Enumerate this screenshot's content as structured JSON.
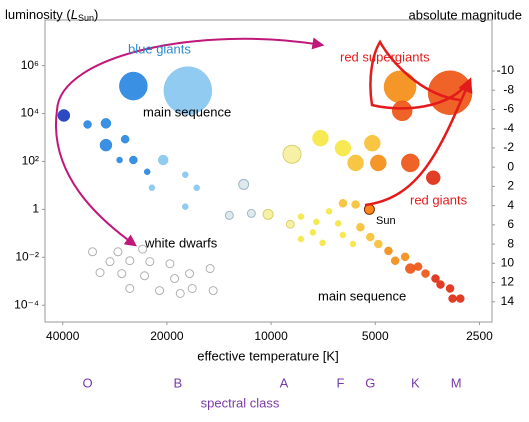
{
  "chart_data": {
    "type": "bubble",
    "ylabel": [
      "luminosity  (",
      "L",
      "Sun",
      ")"
    ],
    "y2label": "absolute magnitude",
    "xlabel": "effective temperature [K]",
    "xlog": true,
    "ylog": true,
    "xlim": [
      45000,
      2300
    ],
    "xticks": [
      40000,
      20000,
      10000,
      5000,
      2500
    ],
    "ylim": [
      2e-05,
      80000000
    ],
    "yticks": [
      {
        "value": 1000000,
        "label": "10⁶"
      },
      {
        "value": 10000,
        "label": "10⁴"
      },
      {
        "value": 100,
        "label": "10²"
      },
      1,
      {
        "value": 0.01,
        "label": "10⁻²"
      },
      {
        "value": 0.0001,
        "label": "10⁻⁴"
      }
    ],
    "y2lim": [
      16.1,
      -15.3
    ],
    "y2ticks": [
      -10,
      -8,
      -6,
      -4,
      -2,
      0,
      2,
      4,
      6,
      8,
      10,
      12,
      14
    ],
    "annotations": {
      "blue_giants": "blue giants",
      "red_supergiants": "red supergiants",
      "main_sequence_upper": "main sequence",
      "red_giants": "red giants",
      "white_dwarfs": "white dwarfs",
      "main_sequence_lower": "main sequence",
      "sun": "Sun"
    },
    "spectral_classes": {
      "labels": [
        "O",
        "B",
        "A",
        "F",
        "G",
        "K",
        "M"
      ],
      "x": [
        33900,
        18600,
        9180,
        6300,
        5170,
        3830,
        2920
      ]
    },
    "spectral_label": "spectral class",
    "series": [
      {
        "color": "#1f3fbf",
        "x": [
          39700
        ],
        "values": [
          8300
        ],
        "sizes": [
          6
        ]
      },
      {
        "color": "#2f8ae0",
        "x": [
          33900,
          30000,
          26400,
          30000,
          27400,
          25000,
          22800,
          25000
        ],
        "values": [
          3500,
          3900,
          850,
          480,
          115,
          115,
          37,
          140000
        ],
        "sizes": [
          4,
          5,
          4,
          6,
          3,
          4,
          3,
          14
        ]
      },
      {
        "color": "#8cc8f0",
        "x": [
          17400,
          20500,
          22100,
          17700,
          16400,
          17700
        ],
        "values": [
          90000,
          115,
          8,
          28,
          8,
          1.3
        ],
        "sizes": [
          24,
          5,
          3,
          3,
          3,
          3
        ]
      },
      {
        "color": "#dce8ec",
        "stroke": "#9fb8c4",
        "x": [
          12000,
          13200,
          11400
        ],
        "values": [
          11,
          0.56,
          0.68
        ],
        "sizes": [
          5,
          4,
          4
        ]
      },
      {
        "color": "#f6f0a0",
        "stroke": "#d8d070",
        "x": [
          8700,
          10200,
          8800
        ],
        "values": [
          200,
          0.62,
          0.24
        ],
        "sizes": [
          9,
          5,
          4
        ]
      },
      {
        "color": "#f5e84a",
        "x": [
          7200,
          6200,
          8200,
          7400,
          6800,
          6400,
          7570,
          8200,
          7100,
          6200,
          5800
        ],
        "values": [
          940,
          360,
          0.5,
          0.3,
          0.83,
          0.26,
          0.11,
          0.058,
          0.04,
          0.085,
          0.036
        ],
        "sizes": [
          8,
          8,
          3,
          3,
          3,
          3,
          3,
          3,
          3,
          3,
          3
        ]
      },
      {
        "color": "#f9c23a",
        "x": [
          5100,
          5700,
          5520,
          6200,
          5700,
          5170,
          4900
        ],
        "values": [
          580,
          87,
          0.18,
          1.8,
          1.6,
          0.07,
          0.036
        ],
        "sizes": [
          8,
          8,
          4,
          4,
          4,
          4,
          4
        ]
      },
      {
        "color": "#ff7f0e",
        "stroke": "#703000",
        "x": [
          5200
        ],
        "values": [
          1
        ],
        "sizes": [
          5
        ]
      },
      {
        "color": "#f4901e",
        "x": [
          4240,
          4900,
          4580,
          4380,
          4100
        ],
        "values": [
          130000,
          87,
          0.0185,
          0.0072,
          0.0105
        ],
        "sizes": [
          16,
          8,
          4,
          4,
          4
        ]
      },
      {
        "color": "#ee5a1c",
        "x": [
          3040,
          4180,
          3960,
          3960,
          3760,
          3580
        ],
        "values": [
          74000,
          13000,
          87,
          0.0034,
          0.0041,
          0.0021
        ],
        "sizes": [
          22,
          10,
          9,
          5,
          4,
          4
        ]
      },
      {
        "color": "#e0341a",
        "x": [
          3400,
          3350,
          3240,
          3040,
          2990,
          2840
        ],
        "values": [
          21,
          0.0013,
          0.00073,
          0.0005,
          0.00019,
          0.00019
        ],
        "sizes": [
          7,
          4,
          4,
          4,
          4,
          4
        ]
      },
      {
        "color": "#ffffff",
        "stroke": "#b0b0b0",
        "x": [
          32800,
          27700,
          23500,
          29200,
          25600,
          22400,
          19600,
          31200,
          27000,
          23200,
          19000,
          17200,
          15000,
          25600,
          21000,
          18300,
          16900,
          14700
        ],
        "values": [
          0.017,
          0.017,
          0.022,
          0.0066,
          0.0072,
          0.0066,
          0.0054,
          0.0023,
          0.0021,
          0.0017,
          0.0013,
          0.0021,
          0.0034,
          0.0005,
          0.00041,
          0.00031,
          0.0005,
          0.00041
        ],
        "sizes": [
          4,
          4,
          4,
          4,
          4,
          4,
          4,
          4,
          4,
          4,
          4,
          4,
          4,
          4,
          4,
          4,
          4,
          4
        ]
      }
    ]
  }
}
